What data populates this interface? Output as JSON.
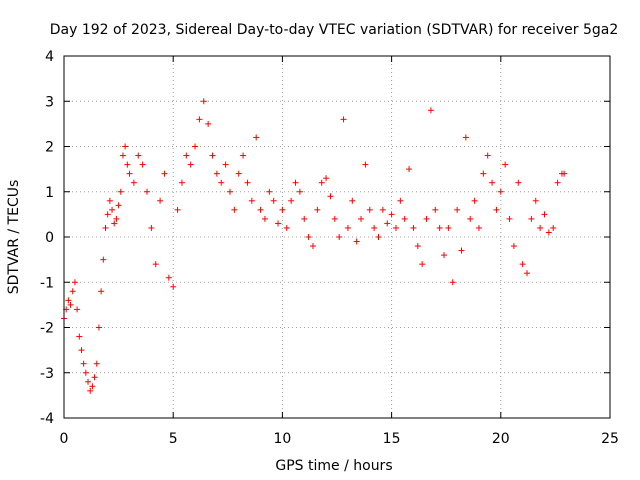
{
  "chart_data": {
    "type": "scatter",
    "title": "Day 192 of 2023, Sidereal Day-to-day VTEC variation (SDTVAR) for receiver 5ga2",
    "xlabel": "GPS time / hours",
    "ylabel": "SDTVAR / TECUs",
    "xlim": [
      0,
      25
    ],
    "ylim": [
      -4,
      4
    ],
    "xticks": [
      "0",
      "5",
      "10",
      "15",
      "20",
      "25"
    ],
    "yticks": [
      "-4",
      "-3",
      "-2",
      "-1",
      "0",
      "1",
      "2",
      "3",
      "4"
    ],
    "marker": "+",
    "color": "#ff0000",
    "grid": true,
    "series": [
      {
        "name": "SDTVAR",
        "x": [
          0.0,
          0.1,
          0.2,
          0.3,
          0.4,
          0.5,
          0.6,
          0.7,
          0.8,
          0.9,
          1.0,
          1.1,
          1.2,
          1.3,
          1.4,
          1.5,
          1.6,
          1.7,
          1.8,
          1.9,
          2.0,
          2.1,
          2.2,
          2.3,
          2.4,
          2.5,
          2.6,
          2.7,
          2.8,
          2.9,
          3.0,
          3.2,
          3.4,
          3.6,
          3.8,
          4.0,
          4.2,
          4.4,
          4.6,
          4.8,
          5.0,
          5.2,
          5.4,
          5.6,
          5.8,
          6.0,
          6.2,
          6.4,
          6.6,
          6.8,
          7.0,
          7.2,
          7.4,
          7.6,
          7.8,
          8.0,
          8.2,
          8.4,
          8.6,
          8.8,
          9.0,
          9.2,
          9.4,
          9.6,
          9.8,
          10.0,
          10.2,
          10.4,
          10.6,
          10.8,
          11.0,
          11.2,
          11.4,
          11.6,
          11.8,
          12.0,
          12.2,
          12.4,
          12.6,
          12.8,
          13.0,
          13.2,
          13.4,
          13.6,
          13.8,
          14.0,
          14.2,
          14.4,
          14.6,
          14.8,
          15.0,
          15.2,
          15.4,
          15.6,
          15.8,
          16.0,
          16.2,
          16.4,
          16.6,
          16.8,
          17.0,
          17.2,
          17.4,
          17.6,
          17.8,
          18.0,
          18.2,
          18.4,
          18.6,
          18.8,
          19.0,
          19.2,
          19.4,
          19.6,
          19.8,
          20.0,
          20.2,
          20.4,
          20.6,
          20.8,
          21.0,
          21.2,
          21.4,
          21.6,
          21.8,
          22.0,
          22.2,
          22.4,
          22.6,
          22.8,
          22.9
        ],
        "y": [
          -1.8,
          -1.6,
          -1.4,
          -1.5,
          -1.2,
          -1.0,
          -1.6,
          -2.2,
          -2.5,
          -2.8,
          -3.0,
          -3.2,
          -3.4,
          -3.3,
          -3.1,
          -2.8,
          -2.0,
          -1.2,
          -0.5,
          0.2,
          0.5,
          0.8,
          0.6,
          0.3,
          0.4,
          0.7,
          1.0,
          1.8,
          2.0,
          1.6,
          1.4,
          1.2,
          1.8,
          1.6,
          1.0,
          0.2,
          -0.6,
          0.8,
          1.4,
          -0.9,
          -1.1,
          0.6,
          1.2,
          1.8,
          1.6,
          2.0,
          2.6,
          3.0,
          2.5,
          1.8,
          1.4,
          1.2,
          1.6,
          1.0,
          0.6,
          1.4,
          1.8,
          1.2,
          0.8,
          2.2,
          0.6,
          0.4,
          1.0,
          0.8,
          0.3,
          0.6,
          0.2,
          0.8,
          1.2,
          1.0,
          0.4,
          0.0,
          -0.2,
          0.6,
          1.2,
          1.3,
          0.9,
          0.4,
          0.0,
          2.6,
          0.2,
          0.8,
          -0.1,
          0.4,
          1.6,
          0.6,
          0.2,
          0.0,
          0.6,
          0.3,
          0.5,
          0.2,
          0.8,
          0.4,
          1.5,
          0.2,
          -0.2,
          -0.6,
          0.4,
          2.8,
          0.6,
          0.2,
          -0.4,
          0.2,
          -1.0,
          0.6,
          -0.3,
          2.2,
          0.4,
          0.8,
          0.2,
          1.4,
          1.8,
          1.2,
          0.6,
          1.0,
          1.6,
          0.4,
          -0.2,
          1.2,
          -0.6,
          -0.8,
          0.4,
          0.8,
          0.2,
          0.5,
          0.1,
          0.2,
          1.2,
          1.4,
          1.4
        ]
      }
    ]
  }
}
